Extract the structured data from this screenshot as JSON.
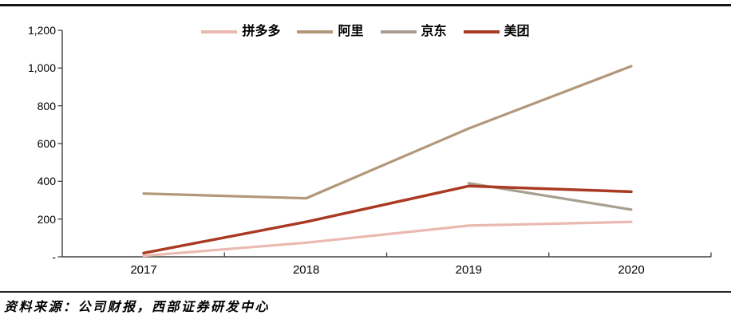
{
  "chart_data": {
    "type": "line",
    "title": "",
    "xlabel": "",
    "ylabel": "",
    "categories": [
      "2017",
      "2018",
      "2019",
      "2020"
    ],
    "series": [
      {
        "name": "拼多多",
        "color": "#EAB9B0",
        "values": [
          5,
          75,
          165,
          185
        ]
      },
      {
        "name": "阿里",
        "color": "#B3977A",
        "values": [
          335,
          310,
          680,
          1010
        ]
      },
      {
        "name": "京东",
        "color": "#A89E8F",
        "values": [
          null,
          null,
          390,
          250
        ]
      },
      {
        "name": "美团",
        "color": "#A93A23",
        "values": [
          20,
          185,
          375,
          345
        ]
      }
    ],
    "ylim": [
      0,
      1200
    ],
    "ytick_interval": 200,
    "yticks": [
      {
        "value": 1200,
        "label": "1,200"
      },
      {
        "value": 1000,
        "label": "1,000"
      },
      {
        "value": 800,
        "label": "800"
      },
      {
        "value": 600,
        "label": "600"
      },
      {
        "value": 400,
        "label": "400"
      },
      {
        "value": 200,
        "label": "200"
      },
      {
        "value": 0,
        "label": "-"
      }
    ],
    "legend_position": "top",
    "grid": false,
    "axis_color": "#404040"
  },
  "footer": {
    "source_note": "资料来源：公司财报，西部证券研发中心"
  }
}
